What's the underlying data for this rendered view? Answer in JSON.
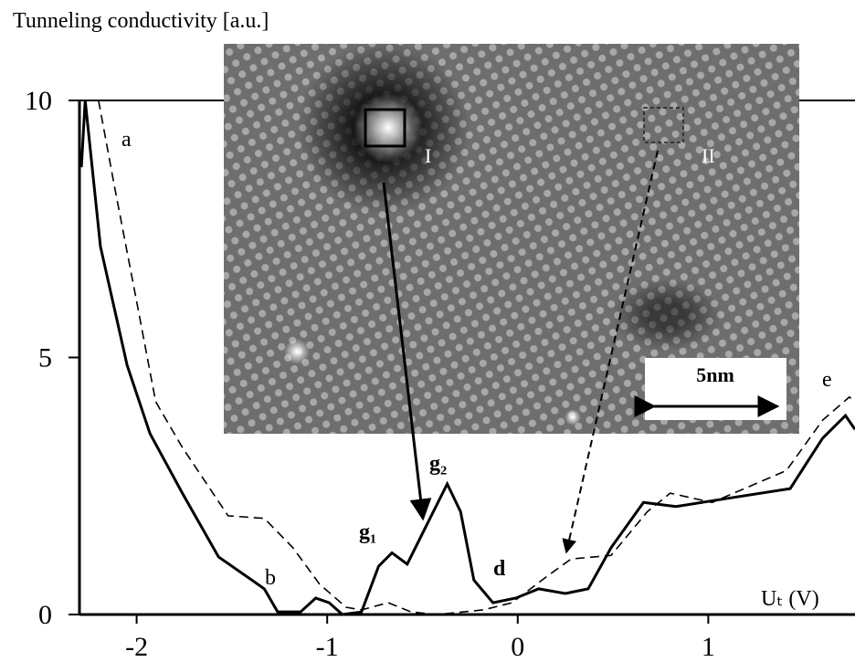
{
  "chart_data": {
    "type": "line",
    "y_label": "Tunneling conductivity [a.u.]",
    "x_label": "Uₜ (V)",
    "xlim": [
      -2.3,
      1.77
    ],
    "ylim": [
      0,
      10
    ],
    "xticks": [
      -2,
      -1,
      0,
      1
    ],
    "yticks": [
      0,
      5,
      10
    ],
    "series": [
      {
        "style": "solid",
        "color": "#000000",
        "x": [
          -2.29,
          -2.27,
          -2.19,
          -2.05,
          -1.93,
          -1.76,
          -1.57,
          -1.43,
          -1.33,
          -1.26,
          -1.14,
          -1.06,
          -0.99,
          -0.92,
          -0.82,
          -0.73,
          -0.66,
          -0.58,
          -0.49,
          -0.37,
          -0.3,
          -0.23,
          -0.13,
          -0.01,
          0.11,
          0.25,
          0.37,
          0.49,
          0.66,
          0.83,
          1.12,
          1.43,
          1.6,
          1.72,
          1.77
        ],
        "values": [
          8.7,
          10,
          7.16,
          4.85,
          3.52,
          2.36,
          1.12,
          0.76,
          0.5,
          0.05,
          0.05,
          0.32,
          0.23,
          0,
          0.05,
          0.94,
          1.2,
          0.98,
          1.65,
          2.54,
          2.0,
          0.67,
          0.23,
          0.32,
          0.5,
          0.41,
          0.5,
          1.3,
          2.18,
          2.1,
          2.27,
          2.45,
          3.43,
          3.87,
          3.6
        ]
      },
      {
        "style": "dashed",
        "color": "#000000",
        "x": [
          -2.2,
          -2.12,
          -2.0,
          -1.9,
          -1.76,
          -1.52,
          -1.33,
          -1.18,
          -1.04,
          -0.9,
          -0.82,
          -0.68,
          -0.56,
          -0.42,
          -0.18,
          -0.03,
          0.16,
          0.28,
          0.49,
          0.68,
          0.8,
          1.02,
          1.41,
          1.6,
          1.74,
          1.77
        ],
        "values": [
          10,
          8.4,
          6.09,
          4.14,
          3.25,
          1.92,
          1.87,
          1.3,
          0.59,
          0.14,
          0.09,
          0.23,
          0.05,
          0,
          0.09,
          0.23,
          0.76,
          1.08,
          1.15,
          2.0,
          2.36,
          2.18,
          2.8,
          3.78,
          4.23,
          4.14
        ]
      }
    ],
    "annotations": [
      "a",
      "b",
      "g₁",
      "g₂",
      "d",
      "e"
    ],
    "inset": {
      "region_1": "I",
      "region_2": "II",
      "scale_bar": "5nm"
    }
  }
}
